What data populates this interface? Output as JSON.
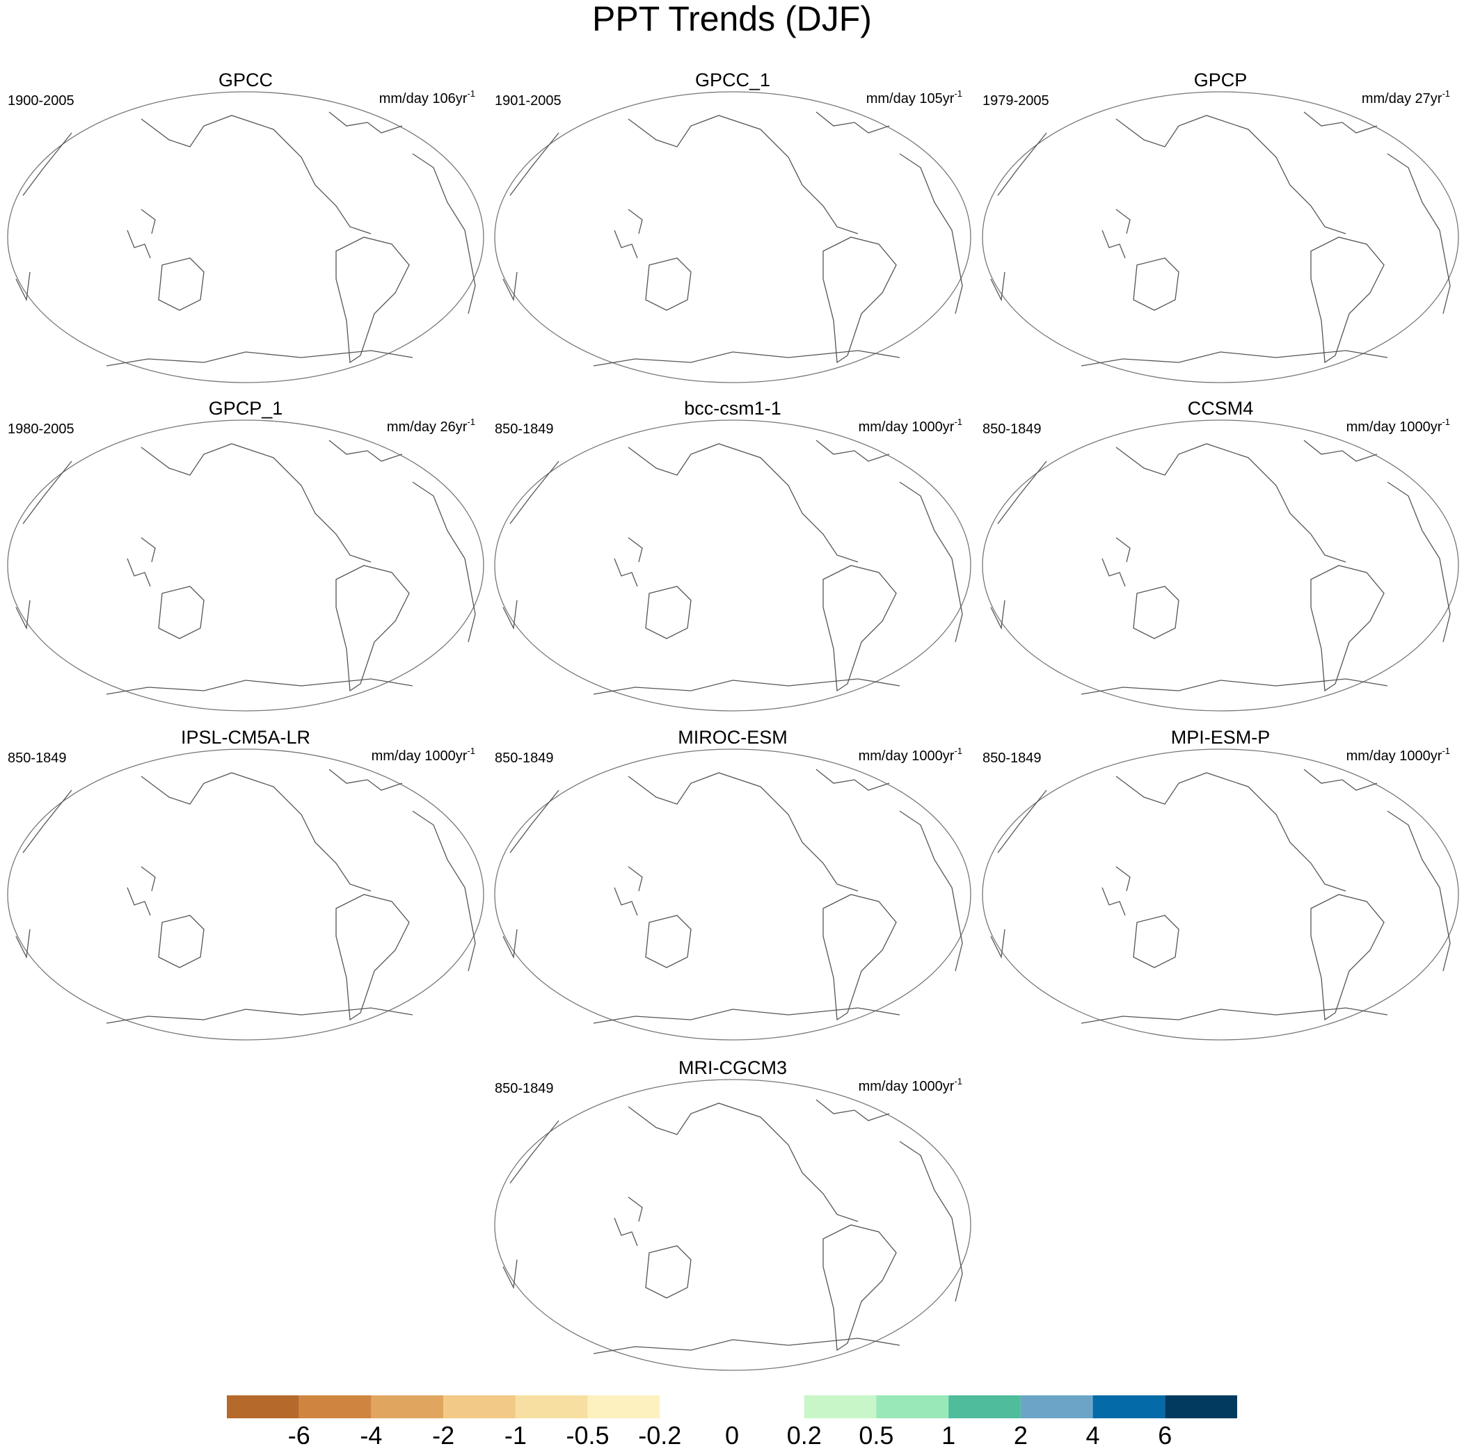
{
  "title": "PPT Trends (DJF)",
  "panels": [
    {
      "name": "GPCC",
      "period": "1900-2005",
      "units": {
        "text": "mm/day 106yr",
        "sup": "-1"
      }
    },
    {
      "name": "GPCC_1",
      "period": "1901-2005",
      "units": {
        "text": "mm/day 105yr",
        "sup": "-1"
      }
    },
    {
      "name": "GPCP",
      "period": "1979-2005",
      "units": {
        "text": "mm/day 27yr",
        "sup": "-1"
      }
    },
    {
      "name": "GPCP_1",
      "period": "1980-2005",
      "units": {
        "text": "mm/day 26yr",
        "sup": "-1"
      }
    },
    {
      "name": "bcc-csm1-1",
      "period": "850-1849",
      "units": {
        "text": "mm/day 1000yr",
        "sup": "-1"
      }
    },
    {
      "name": "CCSM4",
      "period": "850-1849",
      "units": {
        "text": "mm/day 1000yr",
        "sup": "-1"
      }
    },
    {
      "name": "IPSL-CM5A-LR",
      "period": "850-1849",
      "units": {
        "text": "mm/day 1000yr",
        "sup": "-1"
      }
    },
    {
      "name": "MIROC-ESM",
      "period": "850-1849",
      "units": {
        "text": "mm/day 1000yr",
        "sup": "-1"
      }
    },
    {
      "name": "MPI-ESM-P",
      "period": "850-1849",
      "units": {
        "text": "mm/day 1000yr",
        "sup": "-1"
      }
    },
    {
      "name": "MRI-CGCM3",
      "period": "850-1849",
      "units": {
        "text": "mm/day 1000yr",
        "sup": "-1"
      }
    }
  ],
  "colorbar": {
    "levels": [
      -6,
      -4,
      -2,
      -1,
      -0.5,
      -0.2,
      0,
      0.2,
      0.5,
      1,
      2,
      4,
      6
    ],
    "colors": [
      "#b5692a",
      "#cf8540",
      "#e0a660",
      "#f2c985",
      "#f6dfa0",
      "#fdf1bf",
      "#ffffff",
      "#ffffff",
      "#c9f6c8",
      "#98e8b8",
      "#4fbc9c",
      "#6aa5c8",
      "#056aa8",
      "#003a5f"
    ]
  }
}
